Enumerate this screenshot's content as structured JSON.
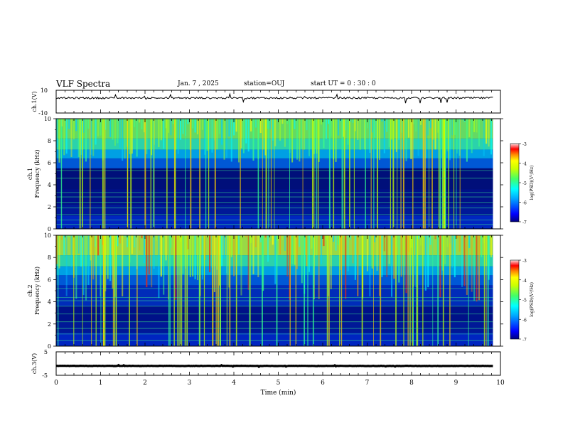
{
  "header": {
    "title": "VLF Spectra",
    "date": "Jan. 7 , 2025",
    "station": "station=OUJ",
    "start_ut": "start UT =  0 : 30 : 0"
  },
  "chart_data": [
    {
      "type": "line",
      "panel": "ch1-waveform",
      "ylabel": "ch.1(V)",
      "ylim": [
        -10,
        10
      ],
      "y_tick_labels": [
        "10",
        "-10"
      ],
      "baseline": 3.2,
      "xlim": [
        0,
        10
      ],
      "data_end_min": 9.83
    },
    {
      "type": "heatmap",
      "panel": "ch1-spectrogram",
      "ylabel": "ch.1\nFrequency (kHz)",
      "ylabel_line1": "ch.1",
      "ylabel_line2": "Frequency (kHz)",
      "ylim": [
        0,
        10
      ],
      "y_ticks": [
        0,
        2,
        4,
        6,
        8,
        10
      ],
      "colorbar": {
        "label": "log(PSD)(V²/Hz)",
        "range": [
          -7,
          -3
        ],
        "ticks": [
          -3,
          -4,
          -5,
          -6,
          -7
        ],
        "colors": [
          "#000080",
          "#0000ff",
          "#00aaff",
          "#00ffff",
          "#44ff66",
          "#ccff00",
          "#ffff00",
          "#ff8800",
          "#ff0000",
          "#cc0044",
          "#ffffff"
        ]
      }
    },
    {
      "type": "heatmap",
      "panel": "ch2-spectrogram",
      "ylabel": "ch.2\nFrequency (kHz)",
      "ylabel_line1": "ch.2",
      "ylabel_line2": "Frequency (kHz)",
      "ylim": [
        0,
        10
      ],
      "y_ticks": [
        0,
        2,
        4,
        6,
        8,
        10
      ],
      "colorbar": {
        "label": "log(PSD)(V²/Hz)",
        "range": [
          -7,
          -3
        ],
        "ticks": [
          -3,
          -4,
          -5,
          -6,
          -7
        ]
      }
    },
    {
      "type": "line",
      "panel": "ch3-waveform",
      "ylabel": "ch.3(V)",
      "ylim": [
        -5,
        5
      ],
      "y_tick_labels": [
        "5",
        "-5"
      ],
      "baseline": -1.0,
      "xlim": [
        0,
        10
      ],
      "data_end_min": 9.83
    }
  ],
  "x_axis": {
    "label": "Time (min)",
    "range": [
      0,
      10
    ],
    "ticks": [
      "0",
      "1",
      "2",
      "3",
      "4",
      "5",
      "6",
      "7",
      "8",
      "9",
      "10"
    ]
  },
  "colors": {
    "axes": "#000000",
    "background": "#ffffff",
    "spectrogram_low": "#000080",
    "spectrogram_high": "#ff0000"
  }
}
